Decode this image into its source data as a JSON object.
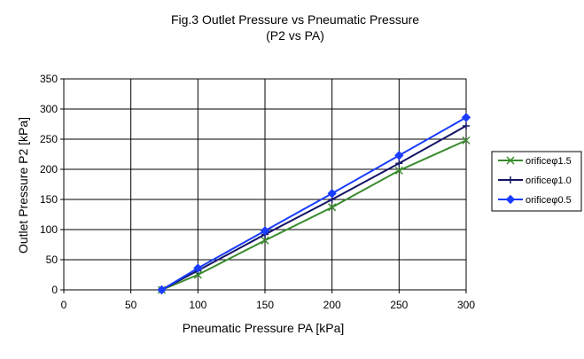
{
  "chart_data": {
    "type": "line",
    "title": "Fig.3 Outlet Pressure vs Pneumatic Pressure",
    "subtitle": "(P2 vs PA)",
    "xlabel": "Pneumatic Pressure PA [kPa]",
    "ylabel": "Outlet Pressure P2 [kPa]",
    "xlim": [
      0,
      300
    ],
    "ylim": [
      0,
      350
    ],
    "xticks": [
      0,
      50,
      100,
      150,
      200,
      250,
      300
    ],
    "yticks": [
      0,
      50,
      100,
      150,
      200,
      250,
      300,
      350
    ],
    "grid": true,
    "legend_position": "right",
    "series": [
      {
        "name": "orificeφ1.5",
        "color": "#3a8a2e",
        "marker": "x",
        "x": [
          73,
          100,
          150,
          200,
          250,
          300
        ],
        "y": [
          0,
          25,
          82,
          137,
          198,
          248
        ]
      },
      {
        "name": "orificeφ1.0",
        "color": "#141466",
        "marker": "plus",
        "x": [
          73,
          100,
          150,
          200,
          250,
          300
        ],
        "y": [
          0,
          32,
          92,
          150,
          210,
          272
        ]
      },
      {
        "name": "orificeφ0.5",
        "color": "#1a3cff",
        "marker": "diamond",
        "x": [
          73,
          100,
          150,
          200,
          250,
          300
        ],
        "y": [
          0,
          36,
          98,
          160,
          223,
          286
        ]
      }
    ]
  }
}
